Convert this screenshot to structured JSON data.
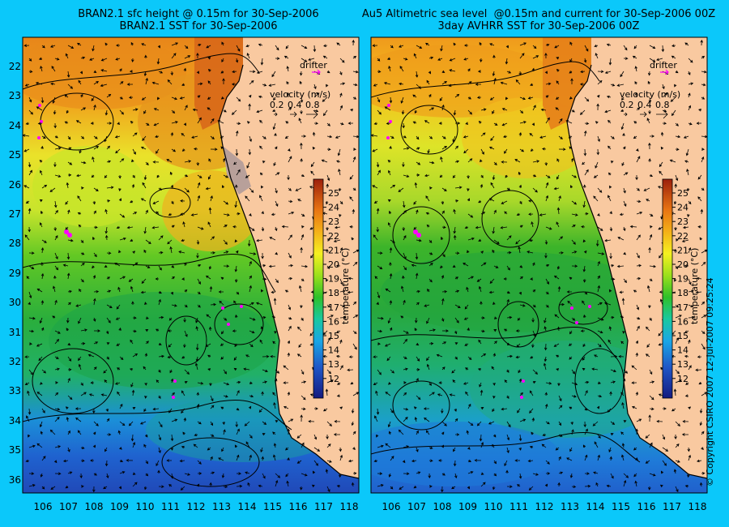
{
  "titles": {
    "left_line1": "BRAN2.1 sfc height @ 0.15m for 30-Sep-2006",
    "left_line2": "BRAN2.1 SST for 30-Sep-2006",
    "right_line1": "Au5 Altimetric sea level  @0.15m and current for 30-Sep-2006 00Z",
    "right_line2": "3day AVHRR SST for 30-Sep-2006 00Z"
  },
  "axes": {
    "lat_labels": [
      "22",
      "23",
      "24",
      "25",
      "26",
      "27",
      "28",
      "29",
      "30",
      "31",
      "32",
      "33",
      "34",
      "35",
      "36"
    ],
    "lon_labels": [
      "106",
      "107",
      "108",
      "109",
      "110",
      "111",
      "112",
      "113",
      "114",
      "115",
      "116",
      "117",
      "118"
    ]
  },
  "legend": {
    "drifter_label": "drifter",
    "velocity_title": "velocity (m/s)",
    "velocity_values": [
      "0.2",
      "0.4",
      "0.8"
    ]
  },
  "colorbar": {
    "ticks": [
      "25",
      "24",
      "23",
      "22",
      "21",
      "20",
      "19",
      "18",
      "17",
      "16",
      "15",
      "14",
      "13",
      "12"
    ],
    "label": "temperature (°C)",
    "range": [
      11,
      26
    ]
  },
  "copyright": "© Copyright CSIRO 2007   12-Jul-2007 09:25:24",
  "colors": {
    "background": "#0bc8fa",
    "land": "#f9c9a0",
    "drifter": "#ff00ff"
  }
}
